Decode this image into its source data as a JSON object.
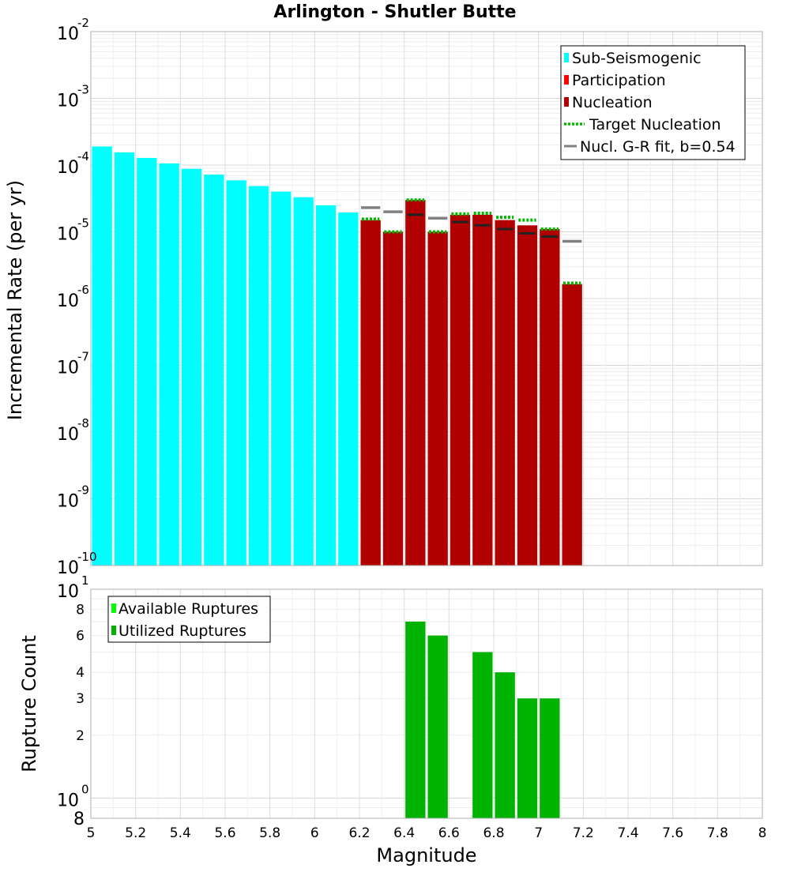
{
  "chart_data": [
    {
      "type": "bar",
      "title": "Arlington - Shutler Butte",
      "xlabel": "",
      "ylabel": "Incremental Rate (per yr)",
      "yscale": "log",
      "xlim": [
        5,
        8
      ],
      "ylim": [
        1e-10,
        0.01
      ],
      "bin_width": 0.1,
      "y_tick_labels": [
        {
          "base": "10",
          "exp": "-2",
          "value": 0.01
        },
        {
          "base": "10",
          "exp": "-3",
          "value": 0.001
        },
        {
          "base": "10",
          "exp": "-4",
          "value": 0.0001
        },
        {
          "base": "10",
          "exp": "-5",
          "value": 1e-05
        },
        {
          "base": "10",
          "exp": "-6",
          "value": 1e-06
        },
        {
          "base": "10",
          "exp": "-7",
          "value": 1e-07
        },
        {
          "base": "10",
          "exp": "-8",
          "value": 1e-08
        },
        {
          "base": "10",
          "exp": "-9",
          "value": 1e-09
        },
        {
          "base": "10",
          "exp": "-10",
          "value": 1e-10
        }
      ],
      "legend": {
        "placement": "top-right",
        "entries": [
          {
            "label": "Sub-Seismogenic",
            "color": "#00ffff",
            "style": "bar"
          },
          {
            "label": "Participation",
            "color": "#ff0000",
            "style": "bar"
          },
          {
            "label": "Nucleation",
            "color": "#b00000",
            "style": "bar"
          },
          {
            "label": "Target Nucleation",
            "color": "#00bb00",
            "style": "dotted"
          },
          {
            "label": "Nucl. G-R fit, b=0.54",
            "color": "#808080",
            "style": "line"
          }
        ]
      },
      "series": [
        {
          "name": "Sub-Seismogenic",
          "color": "#00ffff",
          "x": [
            5.05,
            5.15,
            5.25,
            5.35,
            5.45,
            5.55,
            5.65,
            5.75,
            5.85,
            5.95,
            6.05,
            6.15
          ],
          "values": [
            0.00019,
            0.000155,
            0.000128,
            0.000106,
            8.8e-05,
            7.2e-05,
            5.9e-05,
            4.85e-05,
            4e-05,
            3.3e-05,
            2.5e-05,
            1.95e-05
          ]
        },
        {
          "name": "Nucleation",
          "color": "#b00000",
          "x": [
            6.25,
            6.35,
            6.45,
            6.55,
            6.65,
            6.75,
            6.85,
            6.95,
            7.05,
            7.15
          ],
          "values": [
            1.5e-05,
            1e-05,
            3e-05,
            1e-05,
            1.8e-05,
            1.8e-05,
            1.5e-05,
            1.25e-05,
            1.1e-05,
            1.65e-06
          ]
        },
        {
          "name": "Target Nucleation",
          "color": "#00bb00",
          "x": [
            6.25,
            6.35,
            6.45,
            6.55,
            6.65,
            6.75,
            6.85,
            6.95,
            7.05,
            7.15
          ],
          "values": [
            1.55e-05,
            1e-05,
            3e-05,
            1e-05,
            1.85e-05,
            1.9e-05,
            1.65e-05,
            1.5e-05,
            1.1e-05,
            1.7e-06
          ]
        },
        {
          "name": "Participation markers",
          "color": "#222222",
          "x": [
            6.45,
            6.65,
            6.75,
            6.85,
            6.95,
            7.05
          ],
          "values": [
            1.8e-05,
            1.4e-05,
            1.25e-05,
            1.1e-05,
            9.5e-06,
            8.5e-06
          ]
        },
        {
          "name": "Nucl. G-R fit, b=0.54",
          "color": "#808080",
          "x": [
            6.25,
            6.35,
            6.45,
            6.55,
            6.65,
            6.75,
            6.85,
            6.95,
            7.05,
            7.15
          ],
          "values": [
            2.3e-05,
            2e-05,
            null,
            1.6e-05,
            null,
            null,
            null,
            null,
            null,
            7.2e-06
          ]
        }
      ]
    },
    {
      "type": "bar",
      "title": "",
      "xlabel": "Magnitude",
      "ylabel": "Rupture Count",
      "yscale": "log",
      "xlim": [
        5,
        8
      ],
      "ylim": [
        0.8,
        10
      ],
      "bin_width": 0.1,
      "x_ticks": [
        "5",
        "5.2",
        "5.4",
        "5.6",
        "5.8",
        "6",
        "6.2",
        "6.4",
        "6.6",
        "6.8",
        "7",
        "7.2",
        "7.4",
        "7.6",
        "7.8",
        "8"
      ],
      "y_major_tick_labels": [
        {
          "base": "10",
          "exp": "1",
          "value": 10
        },
        {
          "base": "10",
          "exp": "0",
          "value": 1
        }
      ],
      "y_minor_tick_labels": [
        {
          "label": "8",
          "value": 8
        },
        {
          "label": "6",
          "value": 6
        },
        {
          "label": "4",
          "value": 4
        },
        {
          "label": "3",
          "value": 3
        },
        {
          "label": "2",
          "value": 2
        }
      ],
      "y_bottom_label": {
        "label": "8",
        "value": 0.8
      },
      "legend": {
        "placement": "top-left",
        "entries": [
          {
            "label": "Available Ruptures",
            "color": "#00ff00",
            "style": "bar"
          },
          {
            "label": "Utilized Ruptures",
            "color": "#00b300",
            "style": "bar"
          }
        ]
      },
      "series": [
        {
          "name": "Utilized Ruptures",
          "color": "#00b300",
          "x": [
            6.45,
            6.55,
            6.75,
            6.85,
            6.95,
            7.05
          ],
          "values": [
            7,
            6,
            5,
            4,
            3,
            3
          ]
        }
      ]
    }
  ]
}
